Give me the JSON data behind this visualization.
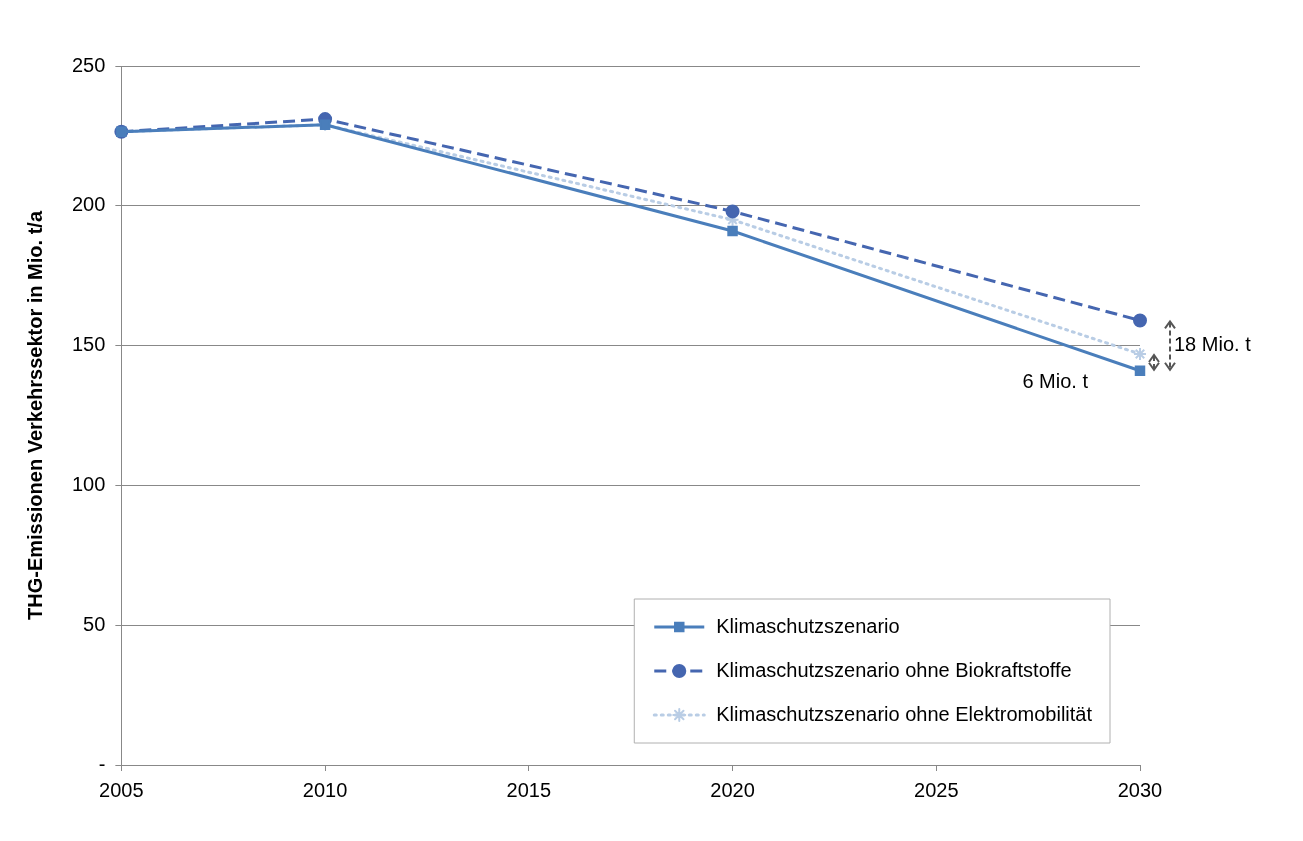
{
  "chart_data": {
    "type": "line",
    "ylabel": "THG-Emissionen Verkehrssektor in Mio. t/a",
    "x": [
      2005,
      2010,
      2020,
      2030
    ],
    "series": [
      {
        "name": "Klimaschutzszenario",
        "color": "#4a7ebb",
        "values": [
          226.5,
          229,
          191,
          141
        ],
        "marker": "square",
        "line_style": "solid"
      },
      {
        "name": "Klimaschutzszenario ohne Biokraftstoffe",
        "color": "#4566b0",
        "values": [
          226.5,
          231,
          198,
          159
        ],
        "marker": "circle",
        "line_style": "dashed"
      },
      {
        "name": "Klimaschutzszenario ohne Elektromobilität",
        "color": "#b9cde5",
        "values": [
          226.5,
          229,
          195,
          147
        ],
        "marker": "cross",
        "line_style": "dotted"
      }
    ],
    "xlim": [
      2005,
      2030
    ],
    "xticks": [
      2005,
      2010,
      2015,
      2020,
      2025,
      2030
    ],
    "ylim": [
      0,
      250
    ],
    "yticks": [
      {
        "value": 0,
        "label": "-"
      },
      50,
      100,
      150,
      200,
      250
    ],
    "grid": "y",
    "legend": "bottom right",
    "annotations": [
      {
        "text": "6 Mio. t",
        "x": 2030,
        "y": 144
      },
      {
        "text": "18 Mio. t",
        "x": 2030,
        "y": 150
      }
    ]
  }
}
